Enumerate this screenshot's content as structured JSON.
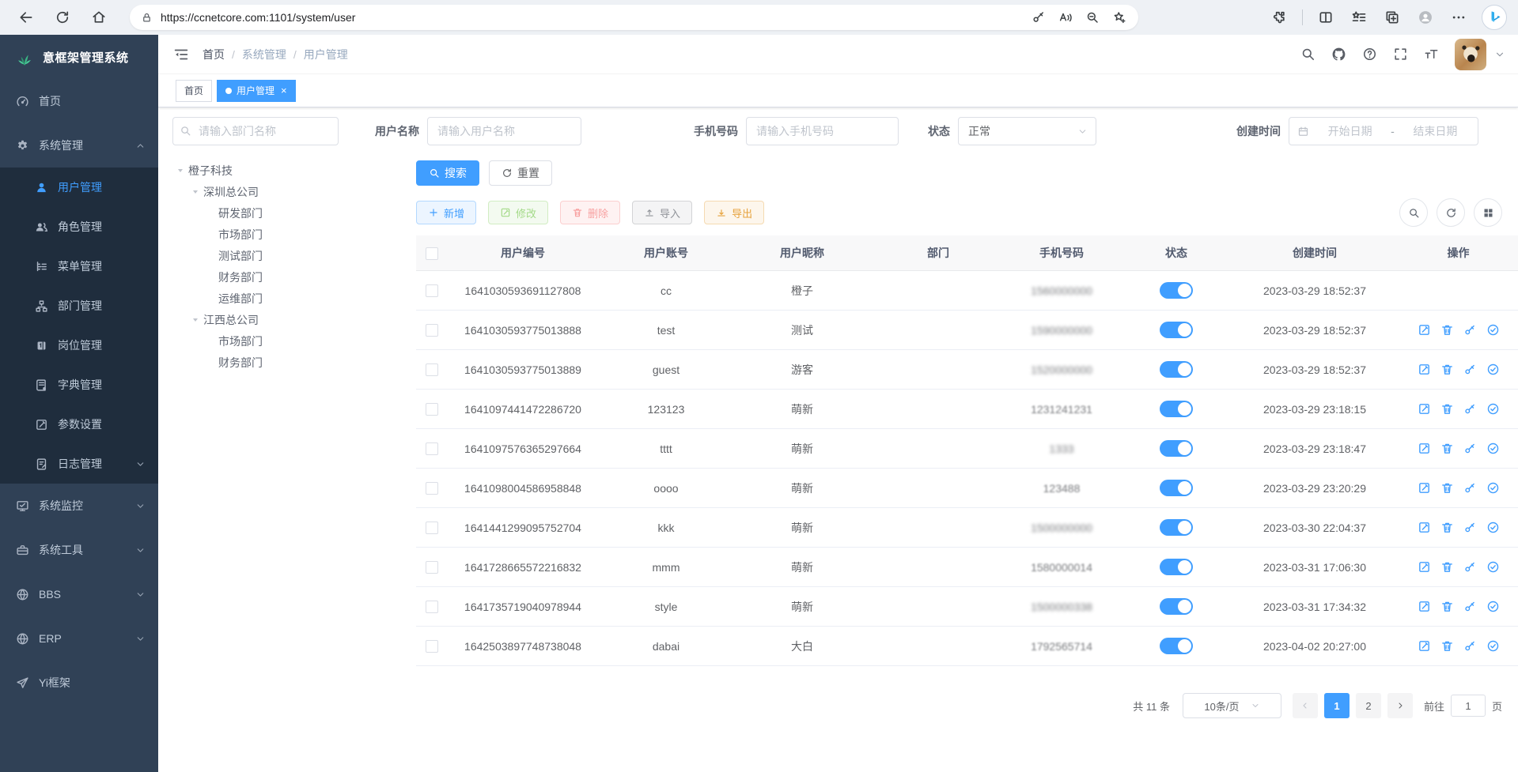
{
  "browser": {
    "url": "https://ccnetcore.com:1101/system/user",
    "left_icons": [
      "back",
      "reload",
      "home"
    ],
    "pill_icons": [
      "key",
      "read-aloud",
      "zoom-out",
      "star-plus"
    ],
    "right_icons": [
      "puzzle",
      "split-screen",
      "favorites-bar",
      "collections",
      "profile",
      "more"
    ],
    "copilot_letter": "b"
  },
  "app": {
    "title": "意框架管理系统"
  },
  "sidebar": {
    "items": [
      {
        "key": "home",
        "label": "首页",
        "icon": "dashboard"
      },
      {
        "key": "system-mgmt",
        "label": "系统管理",
        "icon": "gear",
        "arrow": "up",
        "children": [
          {
            "key": "user-mgmt",
            "label": "用户管理",
            "icon": "user",
            "active": true
          },
          {
            "key": "role-mgmt",
            "label": "角色管理",
            "icon": "users"
          },
          {
            "key": "menu-mgmt",
            "label": "菜单管理",
            "icon": "menutree"
          },
          {
            "key": "dept-mgmt",
            "label": "部门管理",
            "icon": "org"
          },
          {
            "key": "post-mgmt",
            "label": "岗位管理",
            "icon": "badge"
          },
          {
            "key": "dict-mgmt",
            "label": "字典管理",
            "icon": "book"
          },
          {
            "key": "param-setting",
            "label": "参数设置",
            "icon": "editsq"
          },
          {
            "key": "log-mgmt",
            "label": "日志管理",
            "icon": "logdoc",
            "arrow": "down"
          }
        ]
      },
      {
        "key": "system-monitor",
        "label": "系统监控",
        "icon": "monitor",
        "arrow": "down"
      },
      {
        "key": "system-tools",
        "label": "系统工具",
        "icon": "toolbox",
        "arrow": "down"
      },
      {
        "key": "bbs",
        "label": "BBS",
        "icon": "globe",
        "arrow": "down"
      },
      {
        "key": "erp",
        "label": "ERP",
        "icon": "globe",
        "arrow": "down"
      },
      {
        "key": "yi-framework",
        "label": "Yi框架",
        "icon": "plane"
      }
    ]
  },
  "navbar": {
    "breadcrumb": {
      "items": [
        "首页",
        "系统管理",
        "用户管理"
      ],
      "separator": "/"
    },
    "right_icons": [
      "search",
      "github",
      "help",
      "fullscreen",
      "font-size"
    ]
  },
  "tags": [
    {
      "label": "首页",
      "active": false
    },
    {
      "label": "用户管理",
      "active": true,
      "close": "×"
    }
  ],
  "filters": {
    "dept_search_placeholder": "请输入部门名称",
    "username_label": "用户名称",
    "username_placeholder": "请输入用户名称",
    "phone_label": "手机号码",
    "phone_placeholder": "请输入手机号码",
    "status_label": "状态",
    "status_value": "正常",
    "created_label": "创建时间",
    "date_start_placeholder": "开始日期",
    "date_separator": "-",
    "date_end_placeholder": "结束日期"
  },
  "tree": [
    {
      "label": "橙子科技",
      "children": [
        {
          "label": "深圳总公司",
          "children": [
            {
              "label": "研发部门"
            },
            {
              "label": "市场部门"
            },
            {
              "label": "测试部门"
            },
            {
              "label": "财务部门"
            },
            {
              "label": "运维部门"
            }
          ]
        },
        {
          "label": "江西总公司",
          "children": [
            {
              "label": "市场部门"
            },
            {
              "label": "财务部门"
            }
          ]
        }
      ]
    }
  ],
  "toolbar": {
    "search_label": "搜索",
    "reset_label": "重置",
    "add_label": "新增",
    "edit_label": "修改",
    "delete_label": "删除",
    "import_label": "导入",
    "export_label": "导出",
    "tool_icons": [
      "search",
      "reload",
      "grid"
    ]
  },
  "table": {
    "columns": [
      "用户编号",
      "用户账号",
      "用户昵称",
      "部门",
      "手机号码",
      "状态",
      "创建时间",
      "操作"
    ],
    "op_icons": [
      "editsq",
      "trash",
      "keyop",
      "checkcircle"
    ],
    "op_names": [
      "edit",
      "delete",
      "reset-password",
      "assign-role"
    ],
    "rows": [
      {
        "id": "1641030593691127808",
        "account": "cc",
        "nickname": "橙子",
        "dept": "",
        "phone": "1560000000",
        "phone_blur": "normal",
        "status": true,
        "created": "2023-03-29 18:52:37",
        "ops": false
      },
      {
        "id": "1641030593775013888",
        "account": "test",
        "nickname": "测试",
        "dept": "",
        "phone": "1590000000",
        "phone_blur": "normal",
        "status": true,
        "created": "2023-03-29 18:52:37",
        "ops": true
      },
      {
        "id": "1641030593775013889",
        "account": "guest",
        "nickname": "游客",
        "dept": "",
        "phone": "1520000000",
        "phone_blur": "normal",
        "status": true,
        "created": "2023-03-29 18:52:37",
        "ops": true
      },
      {
        "id": "1641097441472286720",
        "account": "123123",
        "nickname": "萌新",
        "dept": "",
        "phone": "1231241231",
        "phone_blur": "light",
        "status": true,
        "created": "2023-03-29 23:18:15",
        "ops": true
      },
      {
        "id": "1641097576365297664",
        "account": "tttt",
        "nickname": "萌新",
        "dept": "",
        "phone": "1333",
        "phone_blur": "normal",
        "status": true,
        "created": "2023-03-29 23:18:47",
        "ops": true
      },
      {
        "id": "1641098004586958848",
        "account": "oooo",
        "nickname": "萌新",
        "dept": "",
        "phone": "123488",
        "phone_blur": "light",
        "status": true,
        "created": "2023-03-29 23:20:29",
        "ops": true
      },
      {
        "id": "1641441299095752704",
        "account": "kkk",
        "nickname": "萌新",
        "dept": "",
        "phone": "1500000000",
        "phone_blur": "normal",
        "status": true,
        "created": "2023-03-30 22:04:37",
        "ops": true
      },
      {
        "id": "1641728665572216832",
        "account": "mmm",
        "nickname": "萌新",
        "dept": "",
        "phone": "1580000014",
        "phone_blur": "light",
        "status": true,
        "created": "2023-03-31 17:06:30",
        "ops": true
      },
      {
        "id": "1641735719040978944",
        "account": "style",
        "nickname": "萌新",
        "dept": "",
        "phone": "1500000338",
        "phone_blur": "normal",
        "status": true,
        "created": "2023-03-31 17:34:32",
        "ops": true
      },
      {
        "id": "1642503897748738048",
        "account": "dabai",
        "nickname": "大白",
        "dept": "",
        "phone": "1792565714",
        "phone_blur": "light",
        "status": true,
        "created": "2023-04-02 20:27:00",
        "ops": true
      }
    ]
  },
  "pagination": {
    "total": "共 11 条",
    "page_size": "10条/页",
    "pages": [
      "1",
      "2"
    ],
    "current": "1",
    "goto_label": "前往",
    "goto_value": "1",
    "unit": "页"
  },
  "colors": {
    "accent": "#409eff",
    "sidebar_bg": "#304156",
    "submenu_bg": "#1f2d3d",
    "logo_green": "#3ab584"
  }
}
